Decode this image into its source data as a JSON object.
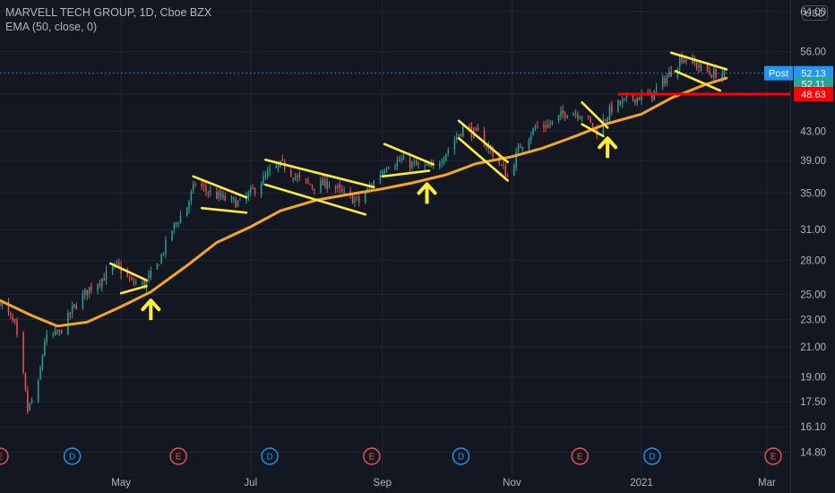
{
  "legend": {
    "symbol_line": "MARVELL TECH GROUP, 1D, Cboe BZX",
    "indicator_line": "EMA (50, close, 0)"
  },
  "currency": "USD",
  "chart_data": {
    "type": "candlestick",
    "title": "MARVELL TECH GROUP, 1D, Cboe BZX",
    "y_scale": "log",
    "ylim": [
      14.3,
      65.5
    ],
    "xlim": [
      "2020-03-05",
      "2021-03-12"
    ],
    "y_ticks": [
      "64.00",
      "56.00",
      "48.63",
      "43.00",
      "39.00",
      "35.00",
      "31.00",
      "28.00",
      "25.00",
      "23.00",
      "21.00",
      "19.00",
      "17.50",
      "16.10",
      "14.80"
    ],
    "x_ticks": [
      {
        "label": "May",
        "date": "2020-05-01"
      },
      {
        "label": "Jul",
        "date": "2020-07-01"
      },
      {
        "label": "Sep",
        "date": "2020-09-01"
      },
      {
        "label": "Nov",
        "date": "2020-11-01"
      },
      {
        "label": "2021",
        "date": "2021-01-01"
      },
      {
        "label": "Mar",
        "date": "2021-03-01"
      }
    ],
    "colors": {
      "up": "#26a69a",
      "down": "#ef5350",
      "ema": "#f5a623",
      "annotation": "#ffeb3b",
      "support": "#ff0000",
      "post": "#2196f3"
    },
    "close_path": [
      [
        "2020-03-05",
        24.5
      ],
      [
        "2020-03-12",
        22.5
      ],
      [
        "2020-03-16",
        19.0
      ],
      [
        "2020-03-18",
        17.0
      ],
      [
        "2020-03-23",
        18.5
      ],
      [
        "2020-03-26",
        21.5
      ],
      [
        "2020-04-02",
        22.0
      ],
      [
        "2020-04-09",
        24.0
      ],
      [
        "2020-04-16",
        25.5
      ],
      [
        "2020-04-23",
        26.5
      ],
      [
        "2020-04-29",
        27.5
      ],
      [
        "2020-05-06",
        26.0
      ],
      [
        "2020-05-12",
        25.8
      ],
      [
        "2020-05-18",
        27.5
      ],
      [
        "2020-05-25",
        31.0
      ],
      [
        "2020-06-01",
        33.5
      ],
      [
        "2020-06-05",
        36.2
      ],
      [
        "2020-06-12",
        35.0
      ],
      [
        "2020-06-19",
        34.3
      ],
      [
        "2020-06-26",
        33.8
      ],
      [
        "2020-07-03",
        35.5
      ],
      [
        "2020-07-10",
        37.5
      ],
      [
        "2020-07-16",
        38.5
      ],
      [
        "2020-07-24",
        36.5
      ],
      [
        "2020-07-31",
        35.8
      ],
      [
        "2020-08-07",
        36.2
      ],
      [
        "2020-08-14",
        34.8
      ],
      [
        "2020-08-21",
        34.0
      ],
      [
        "2020-08-27",
        36.0
      ],
      [
        "2020-09-03",
        38.5
      ],
      [
        "2020-09-10",
        39.0
      ],
      [
        "2020-09-18",
        38.2
      ],
      [
        "2020-09-25",
        38.0
      ],
      [
        "2020-10-02",
        40.5
      ],
      [
        "2020-10-09",
        43.5
      ],
      [
        "2020-10-16",
        42.5
      ],
      [
        "2020-10-23",
        40.0
      ],
      [
        "2020-10-30",
        37.0
      ],
      [
        "2020-11-05",
        41.0
      ],
      [
        "2020-11-12",
        43.5
      ],
      [
        "2020-11-19",
        44.0
      ],
      [
        "2020-11-27",
        46.0
      ],
      [
        "2020-12-04",
        45.5
      ],
      [
        "2020-12-11",
        43.0
      ],
      [
        "2020-12-18",
        46.5
      ],
      [
        "2020-12-28",
        48.0
      ],
      [
        "2021-01-06",
        48.5
      ],
      [
        "2021-01-13",
        51.5
      ],
      [
        "2021-01-20",
        55.0
      ],
      [
        "2021-01-27",
        53.5
      ],
      [
        "2021-02-03",
        52.0
      ],
      [
        "2021-02-09",
        52.1
      ]
    ],
    "ema_50": [
      [
        "2020-03-05",
        24.5
      ],
      [
        "2020-03-20",
        23.3
      ],
      [
        "2020-04-01",
        22.5
      ],
      [
        "2020-04-15",
        22.8
      ],
      [
        "2020-05-01",
        24.0
      ],
      [
        "2020-05-15",
        25.2
      ],
      [
        "2020-06-01",
        27.5
      ],
      [
        "2020-06-15",
        29.7
      ],
      [
        "2020-07-01",
        31.3
      ],
      [
        "2020-07-15",
        33.0
      ],
      [
        "2020-08-01",
        34.2
      ],
      [
        "2020-08-15",
        34.8
      ],
      [
        "2020-09-01",
        35.5
      ],
      [
        "2020-09-15",
        36.2
      ],
      [
        "2020-10-01",
        37.2
      ],
      [
        "2020-10-15",
        38.6
      ],
      [
        "2020-11-01",
        39.5
      ],
      [
        "2020-11-15",
        40.6
      ],
      [
        "2020-12-01",
        42.3
      ],
      [
        "2020-12-15",
        44.0
      ],
      [
        "2021-01-01",
        45.5
      ],
      [
        "2021-01-15",
        48.0
      ],
      [
        "2021-01-31",
        50.2
      ],
      [
        "2021-02-10",
        51.3
      ]
    ],
    "price_tags": [
      {
        "label": "Post",
        "value": "52.13",
        "price": 52.13,
        "color": "#2196f3"
      },
      {
        "label": "",
        "value": "52.11",
        "price": 50.3,
        "color": "#26a69a"
      },
      {
        "label": "",
        "value": "48.63",
        "price": 48.63,
        "color": "#ff0000"
      }
    ],
    "support_line": {
      "price": 48.63,
      "from": "2020-12-21",
      "to": "2021-03-12"
    },
    "post_line_price": 52.13,
    "channels": [
      {
        "upper": [
          [
            "2020-04-26",
            27.7
          ],
          [
            "2020-05-13",
            26.2
          ]
        ],
        "lower": [
          [
            "2020-05-01",
            25.1
          ],
          [
            "2020-05-13",
            25.7
          ]
        ]
      },
      {
        "upper": [
          [
            "2020-06-04",
            37.0
          ],
          [
            "2020-06-29",
            34.5
          ]
        ],
        "lower": [
          [
            "2020-06-08",
            33.3
          ],
          [
            "2020-06-29",
            32.8
          ]
        ]
      },
      {
        "upper": [
          [
            "2020-07-08",
            39.1
          ],
          [
            "2020-08-28",
            35.7
          ]
        ],
        "lower": [
          [
            "2020-07-08",
            36.0
          ],
          [
            "2020-08-24",
            32.6
          ]
        ]
      },
      {
        "upper": [
          [
            "2020-09-02",
            41.2
          ],
          [
            "2020-09-25",
            38.5
          ]
        ],
        "lower": [
          [
            "2020-09-01",
            37.0
          ],
          [
            "2020-09-23",
            37.7
          ]
        ]
      },
      {
        "upper": [
          [
            "2020-10-07",
            44.5
          ],
          [
            "2020-10-30",
            38.8
          ]
        ],
        "lower": [
          [
            "2020-10-07",
            42.0
          ],
          [
            "2020-10-30",
            36.5
          ]
        ]
      },
      {
        "upper": [
          [
            "2020-12-04",
            47.3
          ],
          [
            "2020-12-16",
            43.5
          ]
        ],
        "lower": [
          [
            "2020-12-04",
            44.0
          ],
          [
            "2020-12-14",
            42.3
          ]
        ]
      },
      {
        "upper": [
          [
            "2021-01-15",
            55.8
          ],
          [
            "2021-02-10",
            52.8
          ]
        ],
        "lower": [
          [
            "2021-01-17",
            52.5
          ],
          [
            "2021-02-07",
            49.2
          ]
        ]
      }
    ],
    "arrows": [
      {
        "date": "2020-05-15",
        "price": 24.8
      },
      {
        "date": "2020-09-22",
        "price": 36.5
      },
      {
        "date": "2020-12-16",
        "price": 42.5
      }
    ],
    "events": [
      {
        "label": "E",
        "date": "2020-03-05",
        "kind": "earnings"
      },
      {
        "label": "D",
        "date": "2020-04-08",
        "kind": "dividend"
      },
      {
        "label": "E",
        "date": "2020-05-28",
        "kind": "earnings"
      },
      {
        "label": "D",
        "date": "2020-07-10",
        "kind": "dividend"
      },
      {
        "label": "E",
        "date": "2020-08-27",
        "kind": "earnings"
      },
      {
        "label": "D",
        "date": "2020-10-08",
        "kind": "dividend"
      },
      {
        "label": "E",
        "date": "2020-12-03",
        "kind": "earnings"
      },
      {
        "label": "D",
        "date": "2021-01-06",
        "kind": "dividend"
      },
      {
        "label": "E",
        "date": "2021-03-04",
        "kind": "earnings"
      }
    ]
  }
}
